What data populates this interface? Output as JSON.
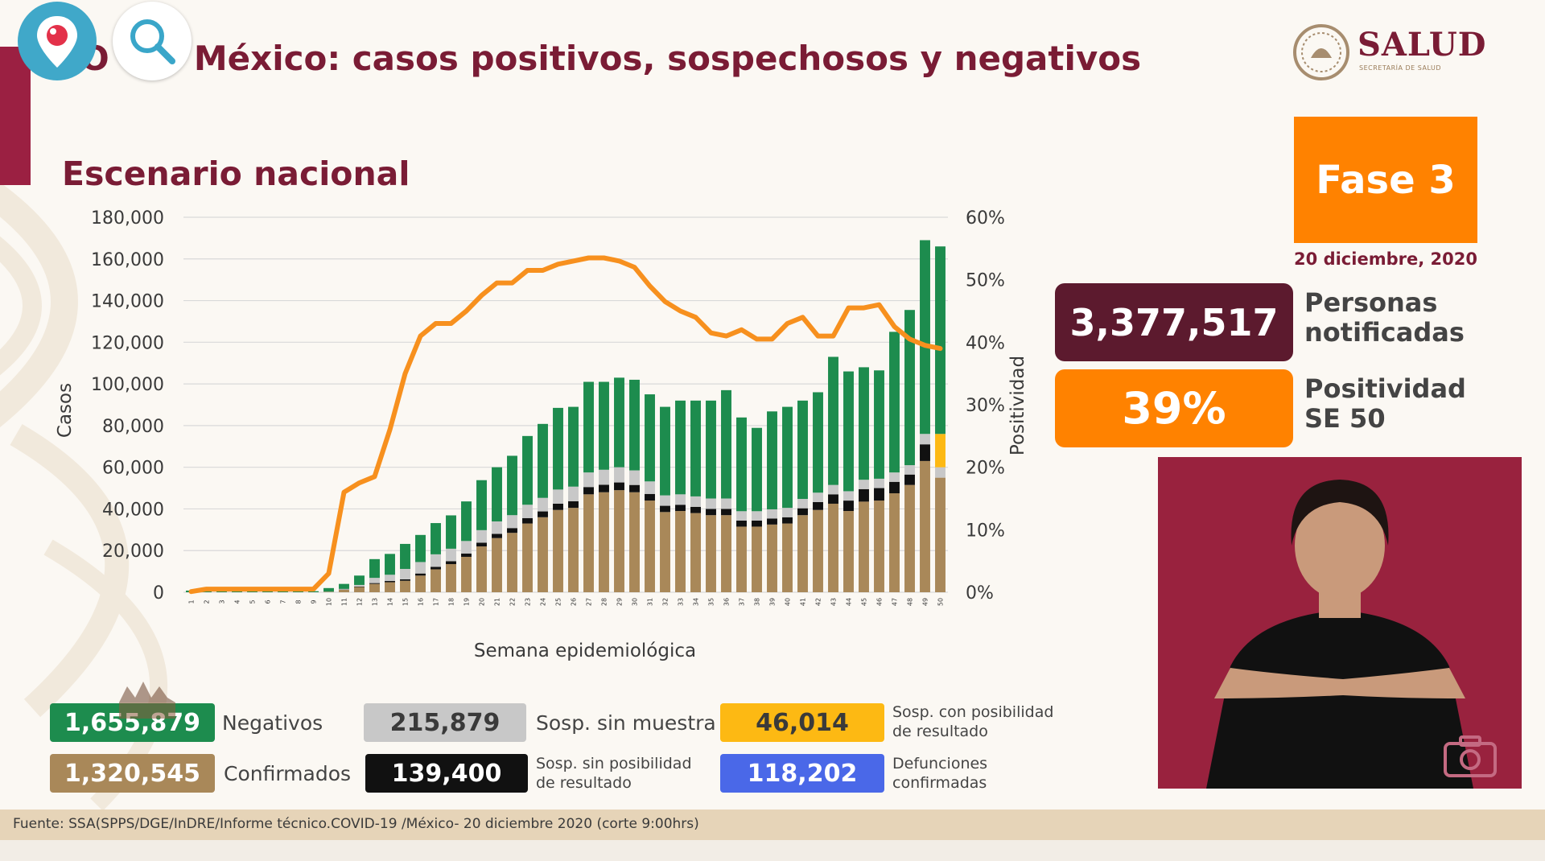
{
  "header": {
    "title": "O  -19 México: casos positivos, sospechosos y negativos",
    "brand": "SALUD",
    "brand_sub": "SECRETARÍA DE SALUD"
  },
  "subtitle": "Escenario nacional",
  "phase": {
    "label": "Fase 3",
    "date": "20 diciembre, 2020",
    "color": "#ff8200"
  },
  "stats": {
    "notified_value": "3,377,517",
    "notified_label_line1": "Personas",
    "notified_label_line2": "notificadas",
    "positivity_value": "39%",
    "positivity_label_line1": "Positividad",
    "positivity_label_line2": "SE 50"
  },
  "legend": {
    "negativos": {
      "value": "1,655,879",
      "label": "Negativos",
      "color": "#1d8c4e"
    },
    "confirmados": {
      "value": "1,320,545",
      "label": "Confirmados",
      "color": "#a98859"
    },
    "sin_muestra": {
      "value": "215,879",
      "label": "Sosp. sin muestra",
      "color": "#c8c8c8"
    },
    "sin_posibilidad": {
      "value": "139,400",
      "label_line1": "Sosp. sin posibilidad",
      "label_line2": "de resultado",
      "color": "#111111"
    },
    "con_posibilidad": {
      "value": "46,014",
      "label_line1": "Sosp. con posibilidad",
      "label_line2": "de resultado",
      "color": "#fdb913"
    },
    "defunciones": {
      "value": "118,202",
      "label_line1": "Defunciones",
      "label_line2": "confirmadas",
      "color": "#4a68e8"
    }
  },
  "footer": {
    "source": "Fuente: SSA(SPPS/DGE/InDRE/Informe técnico.COVID-19 /México- 20 diciembre 2020 (corte 9:00hrs)"
  },
  "icons": {
    "periscope": "periscope-icon",
    "search": "search-icon",
    "camera": "camera-icon",
    "seal": "seal-icon"
  },
  "chart_data": {
    "type": "bar",
    "stacked": true,
    "xlabel": "Semana epidemiológica",
    "ylabel": "Casos",
    "y2label": "Positividad",
    "ylim": [
      0,
      180000
    ],
    "y2lim": [
      0,
      60
    ],
    "yticks": [
      "0",
      "20,000",
      "40,000",
      "60,000",
      "80,000",
      "100,000",
      "120,000",
      "140,000",
      "160,000",
      "180,000"
    ],
    "y2ticks": [
      "0%",
      "10%",
      "20%",
      "30%",
      "40%",
      "50%",
      "60%"
    ],
    "grid": true,
    "categories": [
      "1",
      "2",
      "3",
      "4",
      "5",
      "6",
      "7",
      "8",
      "9",
      "10",
      "11",
      "12",
      "13",
      "14",
      "15",
      "16",
      "17",
      "18",
      "19",
      "20",
      "21",
      "22",
      "23",
      "24",
      "25",
      "26",
      "27",
      "28",
      "29",
      "30",
      "31",
      "32",
      "33",
      "34",
      "35",
      "36",
      "37",
      "38",
      "39",
      "40",
      "41",
      "42",
      "43",
      "44",
      "45",
      "46",
      "47",
      "48",
      "49",
      "50"
    ],
    "series": [
      {
        "name": "Confirmados",
        "color": "#a98859",
        "values": [
          0,
          0,
          0,
          0,
          0,
          0,
          0,
          0,
          0,
          200,
          1200,
          2500,
          4000,
          4800,
          5500,
          8000,
          11000,
          13500,
          17000,
          22000,
          26000,
          28500,
          33000,
          36000,
          39500,
          40500,
          47000,
          48000,
          49000,
          48000,
          44000,
          38500,
          39000,
          38000,
          37000,
          37000,
          31500,
          31500,
          32500,
          33000,
          37000,
          39500,
          42500,
          39000,
          43500,
          44000,
          47500,
          51500,
          63000,
          55000
        ]
      },
      {
        "name": "Sosp. sin posibilidad de resultado",
        "color": "#111111",
        "values": [
          0,
          0,
          0,
          0,
          0,
          0,
          0,
          0,
          0,
          0,
          100,
          200,
          400,
          600,
          700,
          1000,
          1200,
          1400,
          1600,
          1800,
          2000,
          2300,
          2600,
          2800,
          3000,
          3200,
          3500,
          3600,
          3700,
          3500,
          3200,
          3000,
          3000,
          3000,
          3000,
          3000,
          2900,
          2900,
          2900,
          3000,
          3300,
          3800,
          4500,
          5000,
          6000,
          6000,
          5500,
          5000,
          8000,
          0
        ]
      },
      {
        "name": "Sosp. sin muestra",
        "color": "#c8c8c8",
        "values": [
          0,
          0,
          0,
          0,
          0,
          0,
          0,
          0,
          0,
          100,
          300,
          800,
          2500,
          3000,
          5000,
          5500,
          6000,
          6000,
          6000,
          6000,
          6000,
          6200,
          6400,
          6500,
          6800,
          7000,
          7000,
          7200,
          7300,
          7000,
          6000,
          5000,
          5000,
          5000,
          5000,
          5000,
          4500,
          4500,
          4400,
          4500,
          4500,
          4500,
          4500,
          4500,
          4500,
          4500,
          4500,
          4500,
          5000,
          5000
        ]
      },
      {
        "name": "Sosp. con posibilidad de resultado",
        "color": "#fdb913",
        "values": [
          0,
          0,
          0,
          0,
          0,
          0,
          0,
          0,
          0,
          0,
          0,
          0,
          0,
          0,
          0,
          0,
          0,
          0,
          0,
          0,
          0,
          0,
          0,
          0,
          0,
          0,
          0,
          0,
          0,
          0,
          0,
          0,
          0,
          0,
          0,
          0,
          0,
          0,
          0,
          0,
          0,
          0,
          0,
          0,
          0,
          0,
          0,
          0,
          0,
          16000
        ]
      },
      {
        "name": "Negativos",
        "color": "#1d8c4e",
        "values": [
          800,
          2000,
          2000,
          2000,
          1500,
          1500,
          1000,
          800,
          500,
          1700,
          2400,
          4500,
          9000,
          10000,
          12000,
          13000,
          15000,
          16000,
          19000,
          24000,
          26000,
          28500,
          33000,
          35500,
          39200,
          38300,
          43500,
          42200,
          43000,
          43500,
          41800,
          42500,
          45000,
          46000,
          47000,
          52000,
          45000,
          40000,
          47000,
          48500,
          47200,
          48200,
          61500,
          57500,
          54000,
          52000,
          67500,
          74500,
          93000,
          90000
        ]
      }
    ],
    "line": {
      "name": "Positividad",
      "color": "#f7901e",
      "axis": "y2",
      "values": [
        0.1,
        0.5,
        0.5,
        0.5,
        0.5,
        0.5,
        0.5,
        0.5,
        0.5,
        3,
        16,
        17.5,
        18.5,
        26,
        35,
        41,
        43,
        43,
        45,
        47.5,
        49.5,
        49.5,
        51.5,
        51.5,
        52.5,
        53,
        53.5,
        53.5,
        53,
        52,
        49,
        46.5,
        45,
        44,
        41.5,
        41,
        42,
        40.5,
        40.5,
        43,
        44,
        41,
        41,
        45.5,
        45.5,
        46,
        42.5,
        40.5,
        39.5,
        39
      ]
    }
  }
}
